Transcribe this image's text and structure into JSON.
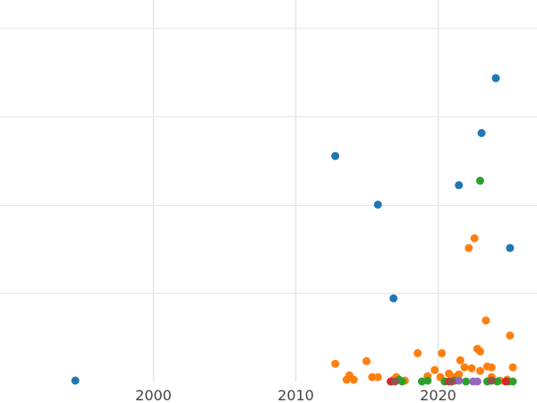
{
  "chart_data": {
    "type": "scatter",
    "title": "",
    "xlabel": "",
    "ylabel": "",
    "xlim": [
      1989.2,
      2027.0
    ],
    "ylim": [
      0,
      4.0
    ],
    "x_ticks": [
      2000,
      2010,
      2020
    ],
    "x_tick_labels": [
      "2000",
      "2010",
      "2020"
    ],
    "y_gridlines": [
      1,
      2,
      3,
      4
    ],
    "grid": true,
    "legend": "none",
    "series": [
      {
        "color": "#1f77b4",
        "points": [
          {
            "x": 1994.5,
            "y": 0.01
          },
          {
            "x": 2012.8,
            "y": 2.55
          },
          {
            "x": 2015.8,
            "y": 2.0
          },
          {
            "x": 2016.9,
            "y": 0.94
          },
          {
            "x": 2021.5,
            "y": 2.22
          },
          {
            "x": 2023.1,
            "y": 2.81
          },
          {
            "x": 2024.1,
            "y": 3.43
          },
          {
            "x": 2025.1,
            "y": 1.51
          }
        ]
      },
      {
        "color": "#ff7f0e",
        "points": [
          {
            "x": 2012.8,
            "y": 0.2
          },
          {
            "x": 2013.6,
            "y": 0.02
          },
          {
            "x": 2013.8,
            "y": 0.07
          },
          {
            "x": 2014.1,
            "y": 0.02
          },
          {
            "x": 2015.0,
            "y": 0.23
          },
          {
            "x": 2015.4,
            "y": 0.05
          },
          {
            "x": 2015.8,
            "y": 0.05
          },
          {
            "x": 2016.9,
            "y": 0.02
          },
          {
            "x": 2017.1,
            "y": 0.05
          },
          {
            "x": 2017.7,
            "y": 0.01
          },
          {
            "x": 2018.6,
            "y": 0.32
          },
          {
            "x": 2019.3,
            "y": 0.06
          },
          {
            "x": 2019.8,
            "y": 0.13
          },
          {
            "x": 2020.2,
            "y": 0.05
          },
          {
            "x": 2020.3,
            "y": 0.32
          },
          {
            "x": 2020.8,
            "y": 0.09
          },
          {
            "x": 2021.2,
            "y": 0.05
          },
          {
            "x": 2021.5,
            "y": 0.08
          },
          {
            "x": 2021.6,
            "y": 0.24
          },
          {
            "x": 2021.9,
            "y": 0.16
          },
          {
            "x": 2022.2,
            "y": 1.51
          },
          {
            "x": 2022.4,
            "y": 0.15
          },
          {
            "x": 2022.6,
            "y": 1.62
          },
          {
            "x": 2022.8,
            "y": 0.37
          },
          {
            "x": 2023.0,
            "y": 0.34
          },
          {
            "x": 2023.0,
            "y": 0.12
          },
          {
            "x": 2023.4,
            "y": 0.69
          },
          {
            "x": 2023.5,
            "y": 0.17
          },
          {
            "x": 2023.8,
            "y": 0.16
          },
          {
            "x": 2023.8,
            "y": 0.05
          },
          {
            "x": 2024.4,
            "y": 0.01
          },
          {
            "x": 2024.9,
            "y": 0.02
          },
          {
            "x": 2025.1,
            "y": 0.52
          },
          {
            "x": 2025.3,
            "y": 0.16
          }
        ]
      },
      {
        "color": "#2ca02c",
        "points": [
          {
            "x": 2017.3,
            "y": 0.02
          },
          {
            "x": 2017.5,
            "y": 0.0
          },
          {
            "x": 2018.9,
            "y": 0.0
          },
          {
            "x": 2019.3,
            "y": 0.01
          },
          {
            "x": 2020.5,
            "y": 0.0
          },
          {
            "x": 2021.2,
            "y": 0.01
          },
          {
            "x": 2022.0,
            "y": 0.0
          },
          {
            "x": 2023.0,
            "y": 2.27
          },
          {
            "x": 2023.5,
            "y": 0.0
          },
          {
            "x": 2024.2,
            "y": 0.0
          },
          {
            "x": 2025.0,
            "y": 0.0
          },
          {
            "x": 2025.3,
            "y": 0.0
          }
        ]
      },
      {
        "color": "#d62728",
        "points": [
          {
            "x": 2016.7,
            "y": 0.0
          },
          {
            "x": 2020.8,
            "y": 0.0
          },
          {
            "x": 2024.8,
            "y": 0.0
          }
        ]
      },
      {
        "color": "#9467bd",
        "points": [
          {
            "x": 2021.5,
            "y": 0.01
          },
          {
            "x": 2022.5,
            "y": 0.0
          },
          {
            "x": 2022.8,
            "y": 0.0
          }
        ]
      },
      {
        "color": "#8c564b",
        "points": [
          {
            "x": 2017.0,
            "y": 0.0
          },
          {
            "x": 2021.0,
            "y": 0.0
          },
          {
            "x": 2023.8,
            "y": 0.01
          }
        ]
      }
    ]
  }
}
